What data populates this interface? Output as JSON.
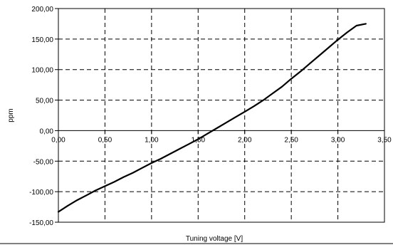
{
  "chart_data": {
    "type": "line",
    "title": "",
    "xlabel": "Tuning voltage [V]",
    "ylabel": "ppm",
    "xlim": [
      0,
      3.5
    ],
    "ylim": [
      -150,
      200
    ],
    "x_ticks": [
      0,
      0.5,
      1.0,
      1.5,
      2.0,
      2.5,
      3.0,
      3.5
    ],
    "x_tick_labels": [
      "0,00",
      "0,50",
      "1,00",
      "1,50",
      "2,00",
      "2,50",
      "3,00",
      "3,50"
    ],
    "y_ticks": [
      -150,
      -100,
      -50,
      0,
      50,
      100,
      150,
      200
    ],
    "y_tick_labels": [
      "-150,00",
      "-100,00",
      "-50,00",
      "0,00",
      "50,00",
      "100,00",
      "150,00",
      "200,00"
    ],
    "grid": true,
    "grid_style": "dashed",
    "legend": "none",
    "series": [
      {
        "color": "#000000",
        "x": [
          0.0,
          0.1,
          0.2,
          0.3,
          0.4,
          0.5,
          0.6,
          0.7,
          0.8,
          0.9,
          1.0,
          1.1,
          1.2,
          1.3,
          1.4,
          1.5,
          1.6,
          1.7,
          1.8,
          1.9,
          2.0,
          2.1,
          2.2,
          2.3,
          2.4,
          2.5,
          2.6,
          2.7,
          2.8,
          2.9,
          3.0,
          3.1,
          3.2,
          3.3
        ],
        "y": [
          -133,
          -123,
          -114,
          -106,
          -98,
          -91,
          -84,
          -76,
          -69,
          -61,
          -53,
          -46,
          -38,
          -30,
          -22,
          -14,
          -5,
          4,
          13,
          22,
          31,
          40,
          50,
          61,
          72,
          85,
          97,
          110,
          123,
          136,
          149,
          161,
          172,
          175
        ]
      }
    ]
  },
  "colors": {
    "line": "#000000",
    "grid": "#000000",
    "background": "#ffffff"
  }
}
